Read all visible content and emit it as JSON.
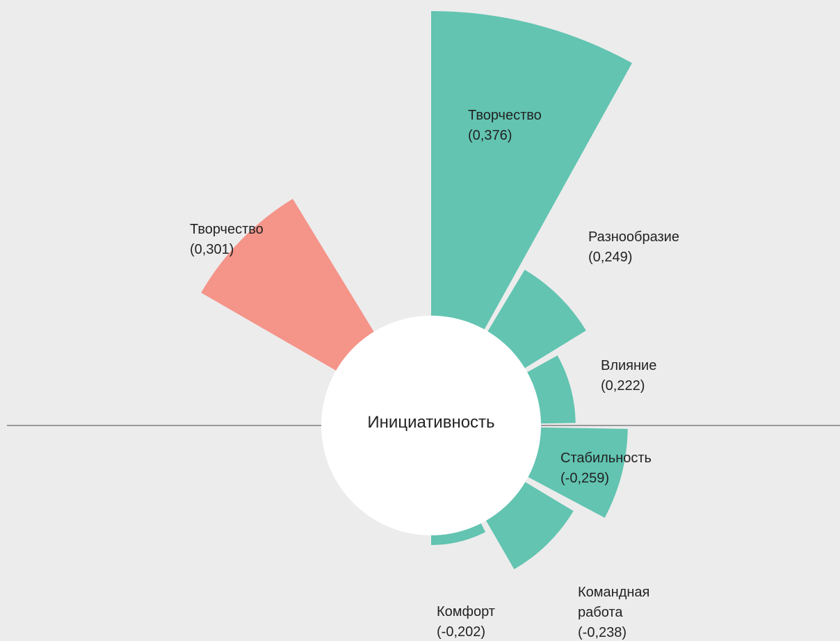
{
  "chart_data": {
    "type": "radial_bar",
    "center_label": "Инициативность",
    "categories": [
      "Творчество",
      "Разнообразие",
      "Влияние",
      "Стабильность",
      "Командная работа",
      "Комфорт",
      "Творчество"
    ],
    "values": [
      0.376,
      0.249,
      0.222,
      -0.259,
      -0.238,
      -0.202,
      0.301
    ],
    "value_labels": [
      "(0,376)",
      "(0,249)",
      "(0,222)",
      "(-0,259)",
      "(-0,238)",
      "(-0,202)",
      "(0,301)"
    ],
    "colors": [
      "#62c4b1",
      "#62c4b1",
      "#62c4b1",
      "#62c4b1",
      "#62c4b1",
      "#62c4b1",
      "#f59489"
    ]
  }
}
